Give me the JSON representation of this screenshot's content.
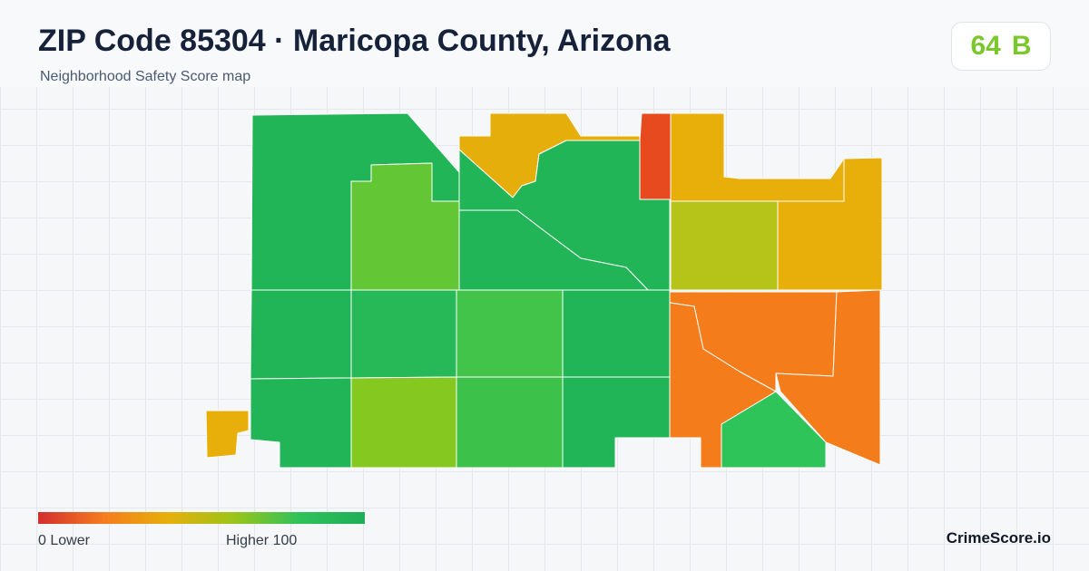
{
  "header": {
    "title": "ZIP Code 85304 · Maricopa County, Arizona",
    "subtitle": "Neighborhood Safety Score map"
  },
  "score": {
    "value": "64",
    "grade": "B",
    "color": "#7ac82b"
  },
  "legend": {
    "low_label": "0  Lower",
    "high_label": "Higher  100",
    "scale_colors": [
      "#d32f2f",
      "#f57c1f",
      "#e6b00a",
      "#9bc41a",
      "#2fc25a",
      "#1fae57"
    ]
  },
  "brand": "CrimeScore.io",
  "map": {
    "border_color": "#ffffff",
    "regions": [
      {
        "name": "nw-upper",
        "color": "#22b558"
      },
      {
        "name": "nw-inner",
        "color": "#63c634"
      },
      {
        "name": "north-center",
        "color": "#e6ae0a"
      },
      {
        "name": "north-diagonal",
        "color": "#22b558"
      },
      {
        "name": "north-strip",
        "color": "#e84a20"
      },
      {
        "name": "northeast-top",
        "color": "#e8ae0a"
      },
      {
        "name": "northeast-mid",
        "color": "#b6c319"
      },
      {
        "name": "northeast-right",
        "color": "#e8ae0a"
      },
      {
        "name": "mid-1",
        "color": "#22b558"
      },
      {
        "name": "mid-2",
        "color": "#27b858"
      },
      {
        "name": "mid-3",
        "color": "#42c44a"
      },
      {
        "name": "mid-4",
        "color": "#22b558"
      },
      {
        "name": "east-mid-left",
        "color": "#f47c1b"
      },
      {
        "name": "east-mid-right",
        "color": "#f47c1b"
      },
      {
        "name": "sw-tab",
        "color": "#e8ae0a"
      },
      {
        "name": "south-1",
        "color": "#22b558"
      },
      {
        "name": "south-2",
        "color": "#85c81f"
      },
      {
        "name": "south-3",
        "color": "#3cc14a"
      },
      {
        "name": "south-4",
        "color": "#22b558"
      },
      {
        "name": "south-east-left",
        "color": "#f47c1b"
      },
      {
        "name": "south-east-green",
        "color": "#2fc45a"
      }
    ]
  }
}
